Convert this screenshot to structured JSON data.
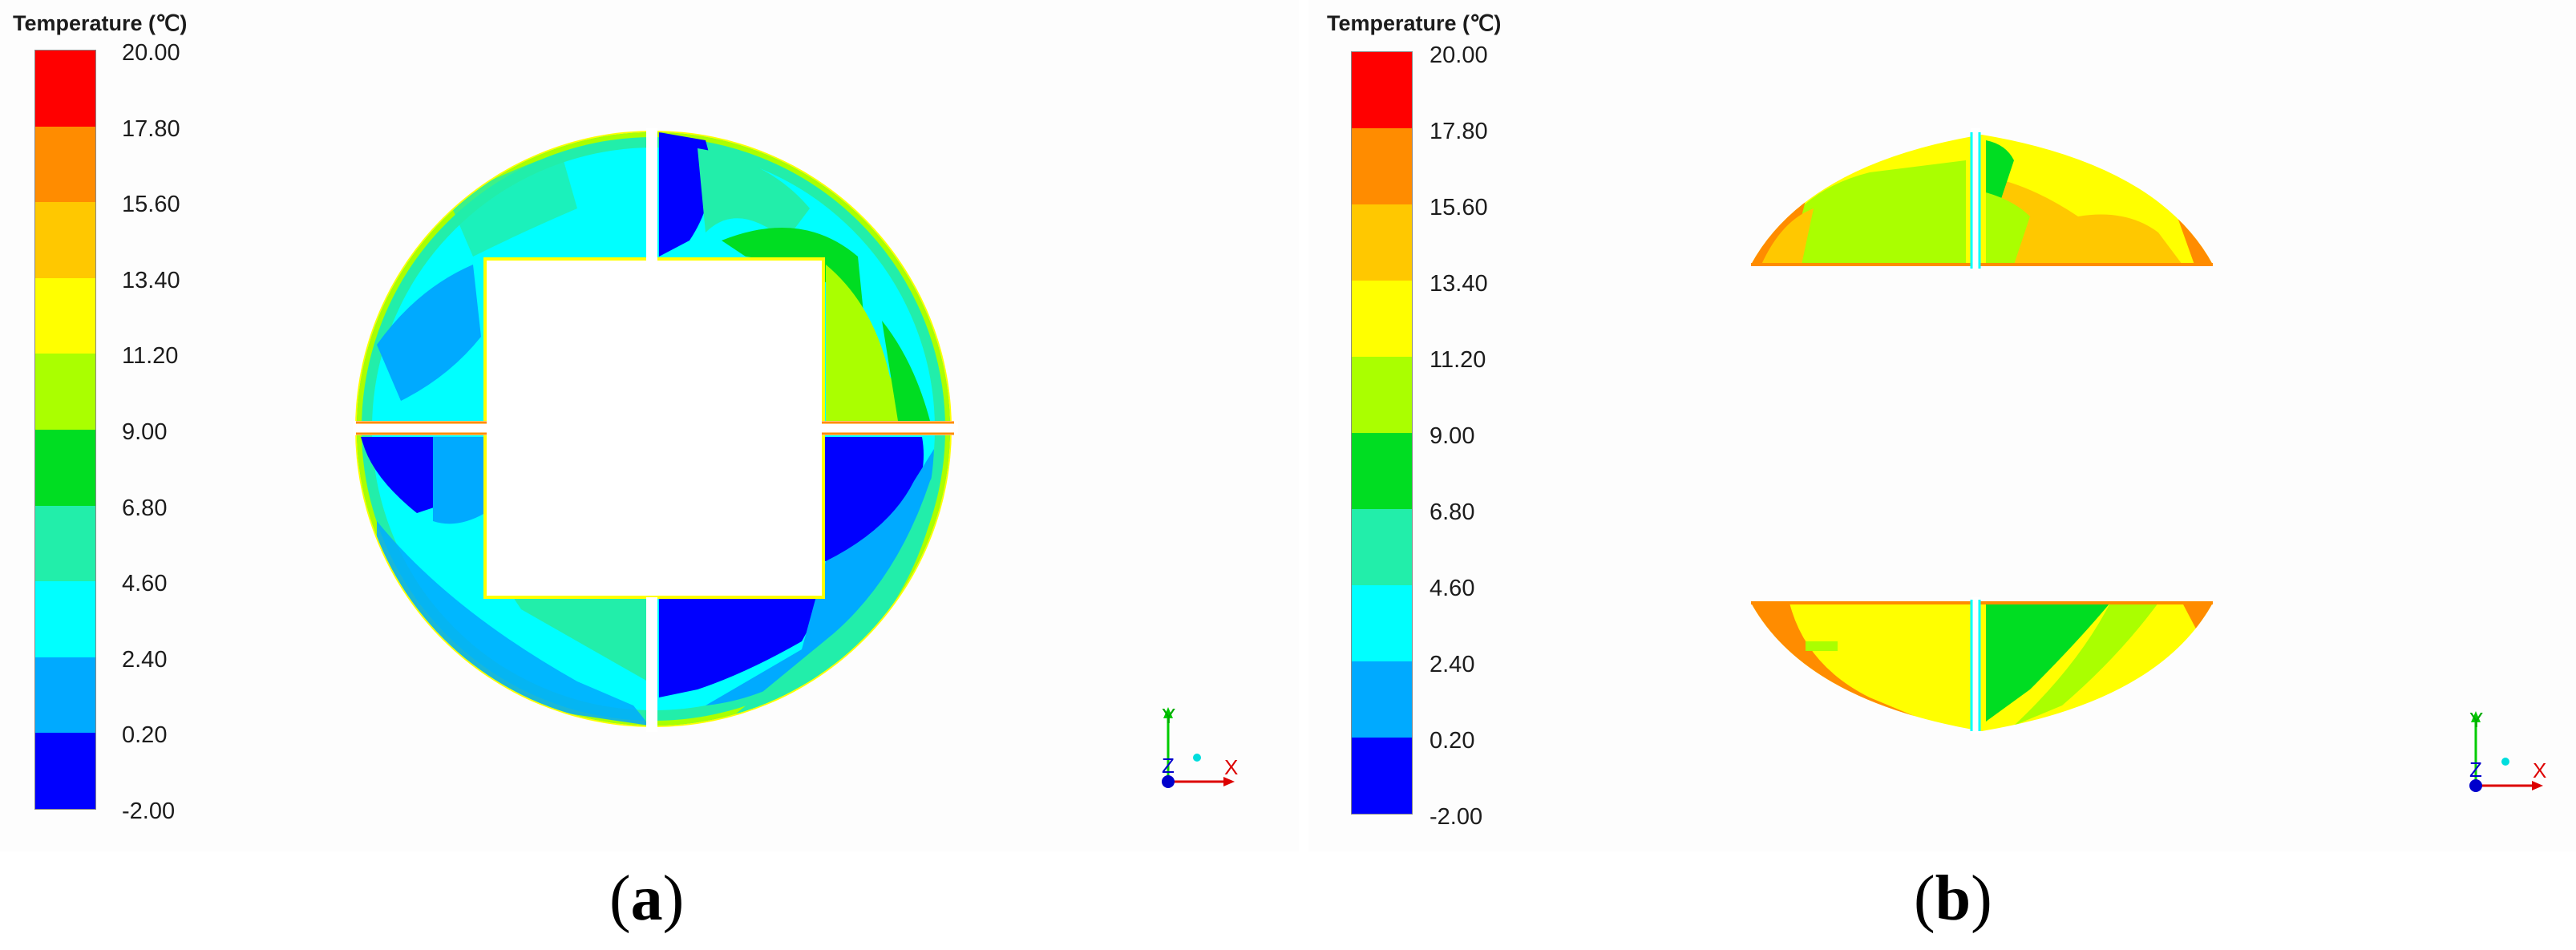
{
  "legend": {
    "title": "Temperature (℃)",
    "ticks": [
      "20.00",
      "17.80",
      "15.60",
      "13.40",
      "11.20",
      "9.00",
      "6.80",
      "4.60",
      "2.40",
      "0.20",
      "-2.00"
    ],
    "colors_top_to_bottom": [
      "#ff0000",
      "#ff8c00",
      "#ffc800",
      "#ffff00",
      "#aaff00",
      "#00dd22",
      "#22eeaa",
      "#00ffff",
      "#00aaff",
      "#0000ff"
    ]
  },
  "panels": [
    {
      "caption_open": "(",
      "caption_letter": "a",
      "caption_close": ")"
    },
    {
      "caption_open": "(",
      "caption_letter": "b",
      "caption_close": ")"
    }
  ],
  "axes_triad": {
    "x": "X",
    "y": "Y",
    "z": "Z"
  }
}
